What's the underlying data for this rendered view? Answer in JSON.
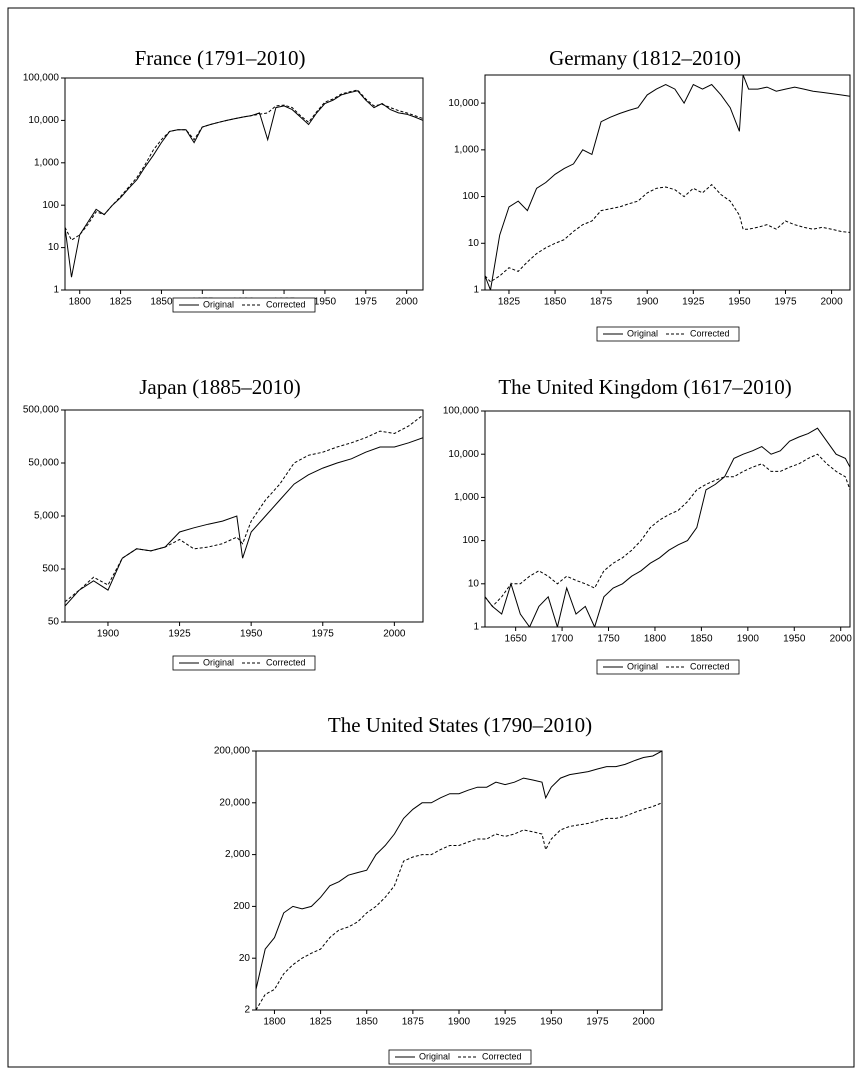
{
  "chart_data": [
    {
      "type": "line",
      "title": "France (1791–2010)",
      "log_scale": true,
      "x": [
        1791,
        1795,
        1800,
        1805,
        1810,
        1815,
        1820,
        1825,
        1830,
        1835,
        1840,
        1845,
        1850,
        1855,
        1860,
        1865,
        1870,
        1875,
        1880,
        1885,
        1890,
        1895,
        1900,
        1905,
        1910,
        1915,
        1920,
        1925,
        1930,
        1935,
        1940,
        1945,
        1950,
        1955,
        1960,
        1965,
        1970,
        1975,
        1980,
        1985,
        1990,
        1995,
        2000,
        2005,
        2010
      ],
      "series": [
        {
          "name": "Original",
          "color": "#000000",
          "dash": false,
          "values": [
            30,
            2,
            20,
            40,
            80,
            60,
            100,
            150,
            250,
            400,
            800,
            1500,
            3000,
            5500,
            6000,
            6000,
            3000,
            7000,
            8000,
            9000,
            10000,
            11000,
            12000,
            13000,
            15000,
            3500,
            20000,
            22000,
            18000,
            12000,
            8000,
            15000,
            25000,
            30000,
            40000,
            45000,
            50000,
            30000,
            20000,
            25000,
            18000,
            15000,
            14000,
            12000,
            10000
          ]
        },
        {
          "name": "Corrected",
          "color": "#000000",
          "dash": true,
          "values": [
            30,
            15,
            20,
            35,
            70,
            60,
            100,
            160,
            270,
            450,
            900,
            2000,
            3500,
            5500,
            6000,
            6000,
            3500,
            7000,
            8000,
            9000,
            10000,
            11000,
            12000,
            13000,
            14000,
            15000,
            22000,
            23000,
            20000,
            13000,
            9000,
            16000,
            27000,
            32000,
            42000,
            47000,
            52000,
            32000,
            22000,
            24000,
            20000,
            17000,
            15000,
            13000,
            11000
          ]
        }
      ],
      "xlim": [
        1791,
        2010
      ],
      "xticks": [
        1800,
        1825,
        1850,
        1875,
        1900,
        1925,
        1950,
        1975,
        2000
      ],
      "ylim": [
        1,
        100000
      ],
      "yticks": [
        1,
        10,
        100,
        {
          "value": 1000,
          "label": "1,000"
        },
        {
          "value": 10000,
          "label": "10,000"
        },
        {
          "value": 100000,
          "label": "100,000"
        }
      ]
    },
    {
      "type": "line",
      "title": "Germany (1812–2010)",
      "log_scale": true,
      "x": [
        1812,
        1815,
        1820,
        1825,
        1830,
        1835,
        1840,
        1845,
        1850,
        1855,
        1860,
        1865,
        1870,
        1875,
        1880,
        1885,
        1890,
        1895,
        1900,
        1905,
        1910,
        1915,
        1920,
        1925,
        1930,
        1935,
        1940,
        1945,
        1950,
        1952,
        1955,
        1960,
        1965,
        1970,
        1975,
        1980,
        1985,
        1990,
        1995,
        2000,
        2005,
        2010
      ],
      "series": [
        {
          "name": "Original",
          "color": "#000000",
          "dash": false,
          "values": [
            2,
            1,
            15,
            60,
            80,
            50,
            150,
            200,
            300,
            400,
            500,
            1000,
            800,
            4000,
            5000,
            6000,
            7000,
            8000,
            15000,
            20000,
            25000,
            20000,
            10000,
            25000,
            20000,
            25000,
            15000,
            8000,
            2500,
            40000,
            20000,
            20000,
            22000,
            18000,
            20000,
            22000,
            20000,
            18000,
            17000,
            16000,
            15000,
            14000
          ]
        },
        {
          "name": "Corrected",
          "color": "#000000",
          "dash": true,
          "values": [
            2,
            1.5,
            2,
            3,
            2.5,
            4,
            6,
            8,
            10,
            12,
            18,
            25,
            30,
            50,
            55,
            60,
            70,
            80,
            120,
            150,
            160,
            140,
            100,
            150,
            120,
            180,
            110,
            80,
            40,
            20,
            20,
            22,
            25,
            20,
            30,
            25,
            22,
            20,
            22,
            20,
            18,
            17
          ]
        }
      ],
      "xlim": [
        1812,
        2010
      ],
      "xticks": [
        1825,
        1850,
        1875,
        1900,
        1925,
        1950,
        1975,
        2000
      ],
      "ylim": [
        1,
        40000
      ],
      "yticks": [
        1,
        10,
        100,
        {
          "value": 1000,
          "label": "1,000"
        },
        {
          "value": 10000,
          "label": "10,000"
        }
      ]
    },
    {
      "type": "line",
      "title": "Japan (1885–2010)",
      "log_scale": true,
      "x": [
        1885,
        1890,
        1895,
        1900,
        1905,
        1910,
        1915,
        1920,
        1925,
        1930,
        1935,
        1940,
        1945,
        1947,
        1950,
        1955,
        1960,
        1965,
        1970,
        1975,
        1980,
        1985,
        1990,
        1995,
        2000,
        2005,
        2010
      ],
      "series": [
        {
          "name": "Original",
          "color": "#000000",
          "dash": false,
          "values": [
            100,
            200,
            300,
            200,
            800,
            1200,
            1100,
            1300,
            2500,
            3000,
            3500,
            4000,
            5000,
            800,
            2500,
            5000,
            10000,
            20000,
            30000,
            40000,
            50000,
            60000,
            80000,
            100000,
            100000,
            120000,
            150000
          ]
        },
        {
          "name": "Corrected",
          "color": "#000000",
          "dash": true,
          "values": [
            120,
            200,
            350,
            250,
            800,
            1200,
            1100,
            1300,
            1800,
            1200,
            1300,
            1500,
            2000,
            1500,
            4000,
            10000,
            20000,
            50000,
            70000,
            80000,
            100000,
            120000,
            150000,
            200000,
            180000,
            250000,
            400000
          ]
        }
      ],
      "xlim": [
        1885,
        2010
      ],
      "xticks": [
        1900,
        1925,
        1950,
        1975,
        2000
      ],
      "ylim": [
        50,
        500000
      ],
      "yticks": [
        50,
        500,
        {
          "value": 5000,
          "label": "5,000"
        },
        {
          "value": 50000,
          "label": "50,000"
        },
        {
          "value": 500000,
          "label": "500,000"
        }
      ]
    },
    {
      "type": "line",
      "title": "The United Kingdom (1617–2010)",
      "log_scale": true,
      "x": [
        1617,
        1625,
        1635,
        1645,
        1655,
        1665,
        1675,
        1685,
        1695,
        1705,
        1715,
        1725,
        1735,
        1745,
        1755,
        1765,
        1775,
        1785,
        1795,
        1805,
        1815,
        1825,
        1835,
        1845,
        1855,
        1865,
        1875,
        1885,
        1895,
        1905,
        1915,
        1925,
        1935,
        1945,
        1955,
        1965,
        1975,
        1985,
        1995,
        2005,
        2010
      ],
      "series": [
        {
          "name": "Original",
          "color": "#000000",
          "dash": false,
          "values": [
            5,
            3,
            2,
            10,
            2,
            1,
            3,
            5,
            1,
            8,
            2,
            3,
            1,
            5,
            8,
            10,
            15,
            20,
            30,
            40,
            60,
            80,
            100,
            200,
            1500,
            2000,
            3000,
            8000,
            10000,
            12000,
            15000,
            10000,
            12000,
            20000,
            25000,
            30000,
            40000,
            20000,
            10000,
            8000,
            5000
          ]
        },
        {
          "name": "Corrected",
          "color": "#000000",
          "dash": true,
          "values": [
            5,
            3,
            5,
            10,
            10,
            15,
            20,
            15,
            10,
            15,
            12,
            10,
            8,
            20,
            30,
            40,
            60,
            100,
            200,
            300,
            400,
            500,
            800,
            1500,
            2000,
            2500,
            3000,
            3000,
            4000,
            5000,
            6000,
            4000,
            4000,
            5000,
            6000,
            8000,
            10000,
            6000,
            4000,
            3000,
            1500
          ]
        }
      ],
      "xlim": [
        1617,
        2010
      ],
      "xticks": [
        1650,
        1700,
        1750,
        1800,
        1850,
        1900,
        1950,
        2000
      ],
      "ylim": [
        1,
        100000
      ],
      "yticks": [
        1,
        10,
        100,
        {
          "value": 1000,
          "label": "1,000"
        },
        {
          "value": 10000,
          "label": "10,000"
        },
        {
          "value": 100000,
          "label": "100,000"
        }
      ]
    },
    {
      "type": "line",
      "title": "The United States (1790–2010)",
      "log_scale": true,
      "x": [
        1790,
        1795,
        1800,
        1805,
        1810,
        1815,
        1820,
        1825,
        1830,
        1835,
        1840,
        1845,
        1850,
        1855,
        1860,
        1865,
        1870,
        1875,
        1880,
        1885,
        1890,
        1895,
        1900,
        1905,
        1910,
        1915,
        1920,
        1925,
        1930,
        1935,
        1940,
        1945,
        1947,
        1950,
        1955,
        1960,
        1965,
        1970,
        1975,
        1980,
        1985,
        1990,
        1995,
        2000,
        2005,
        2010
      ],
      "series": [
        {
          "name": "Original",
          "color": "#000000",
          "dash": false,
          "values": [
            5,
            30,
            50,
            150,
            200,
            180,
            200,
            300,
            500,
            600,
            800,
            900,
            1000,
            2000,
            3000,
            5000,
            10000,
            15000,
            20000,
            20000,
            25000,
            30000,
            30000,
            35000,
            40000,
            40000,
            50000,
            45000,
            50000,
            60000,
            55000,
            50000,
            25000,
            40000,
            60000,
            70000,
            75000,
            80000,
            90000,
            100000,
            100000,
            110000,
            130000,
            150000,
            160000,
            200000
          ]
        },
        {
          "name": "Corrected",
          "color": "#000000",
          "dash": true,
          "values": [
            2,
            4,
            5,
            10,
            15,
            20,
            25,
            30,
            50,
            70,
            80,
            100,
            150,
            200,
            300,
            500,
            1500,
            1800,
            2000,
            2000,
            2500,
            3000,
            3000,
            3500,
            4000,
            4000,
            5000,
            4500,
            5000,
            6000,
            5500,
            5000,
            2500,
            4000,
            6000,
            7000,
            7500,
            8000,
            9000,
            10000,
            10000,
            11000,
            13000,
            15000,
            17000,
            20000
          ]
        }
      ],
      "xlim": [
        1790,
        2010
      ],
      "xticks": [
        1800,
        1825,
        1850,
        1875,
        1900,
        1925,
        1950,
        1975,
        2000
      ],
      "ylim": [
        2,
        200000
      ],
      "yticks": [
        2,
        20,
        200,
        {
          "value": 2000,
          "label": "2,000"
        },
        {
          "value": 20000,
          "label": "20,000"
        },
        {
          "value": 200000,
          "label": "200,000"
        }
      ]
    }
  ]
}
